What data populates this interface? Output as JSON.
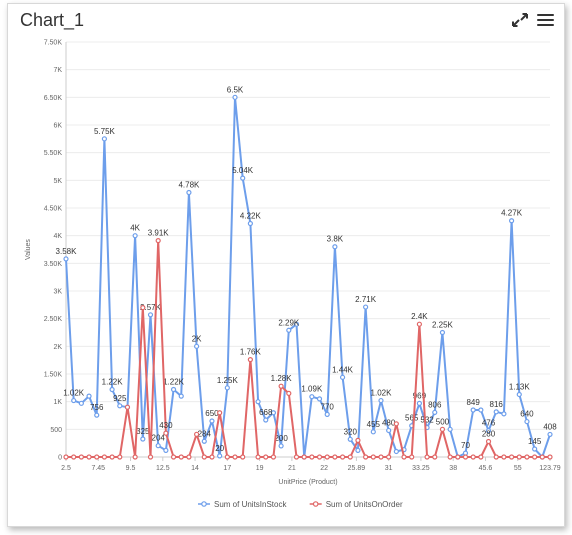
{
  "title": "Chart_1",
  "toolbar": {
    "expand_icon": "expand-icon",
    "menu_icon": "hamburger-menu-icon"
  },
  "colors": {
    "stock": "#6d9eeb",
    "order": "#e06666",
    "grid": "#ececec",
    "axis": "#cccccc"
  },
  "chart_data": {
    "type": "line",
    "xlabel": "UnitPrice (Product)",
    "ylabel": "Values",
    "ylim": [
      0,
      7500
    ],
    "y_ticks": [
      0,
      500,
      1000,
      1500,
      2000,
      2500,
      3000,
      3500,
      4000,
      4500,
      5000,
      5500,
      6000,
      6500,
      7000,
      7500
    ],
    "y_tick_labels": [
      "0",
      "500",
      "1K",
      "1.50K",
      "2K",
      "2.50K",
      "3K",
      "3.50K",
      "4K",
      "4.50K",
      "5K",
      "5.50K",
      "6K",
      "6.50K",
      "7K",
      "7.50K"
    ],
    "x_tick_labels": [
      "2.5",
      "7.45",
      "9.5",
      "12.5",
      "14",
      "17",
      "19",
      "21",
      "22",
      "25.89",
      "31",
      "33.25",
      "38",
      "45.6",
      "55",
      "123.79"
    ],
    "legend": [
      "Sum of UnitsInStock",
      "Sum of UnitsOnOrder"
    ],
    "legend_position": "bottom",
    "grid": true,
    "series": [
      {
        "name": "Sum of UnitsInStock",
        "values": [
          3580,
          1020,
          970,
          1100,
          756,
          5750,
          1220,
          925,
          900,
          4000,
          325,
          2570,
          204,
          120,
          1220,
          1100,
          4780,
          2000,
          284,
          650,
          20,
          1250,
          6500,
          5040,
          4220,
          1000,
          668,
          800,
          200,
          2290,
          2400,
          0,
          1090,
          1050,
          770,
          3800,
          1440,
          320,
          120,
          2710,
          455,
          1020,
          480,
          100,
          133,
          565,
          969,
          532,
          806,
          2250,
          500,
          0,
          70,
          849,
          850,
          476,
          816,
          780,
          4270,
          1130,
          640,
          145,
          0,
          408
        ],
        "labels": {
          "0": "3.58K",
          "1": "1.02K",
          "4": "756",
          "5": "5.75K",
          "6": "1.22K",
          "7": "925",
          "9": "4K",
          "10": "325",
          "11": "2.57K",
          "12": "204",
          "14": "1.22K",
          "16": "4.78K",
          "17": "2K",
          "18": "284",
          "19": "650",
          "20": "20",
          "21": "1.25K",
          "22": "6.5K",
          "23": "5.04K",
          "24": "4.22K",
          "26": "668",
          "28": "200",
          "29": "2.29K",
          "32": "1.09K",
          "34": "770",
          "35": "3.8K",
          "36": "1.44K",
          "37": "320",
          "39": "2.71K",
          "40": "455",
          "41": "1.02K",
          "42": "480",
          "45": "565",
          "46": "969",
          "47": "532",
          "48": "806",
          "49": "2.25K",
          "52": "70",
          "53": "849",
          "55": "476",
          "56": "816",
          "58": "4.27K",
          "59": "1.13K",
          "60": "640",
          "61": "145",
          "63": "408"
        }
      },
      {
        "name": "Sum of UnitsOnOrder",
        "values": [
          0,
          0,
          0,
          0,
          0,
          0,
          0,
          0,
          900,
          0,
          2700,
          0,
          3910,
          430,
          0,
          0,
          0,
          410,
          0,
          0,
          800,
          0,
          0,
          0,
          1760,
          0,
          0,
          0,
          1280,
          1150,
          0,
          0,
          0,
          0,
          0,
          0,
          0,
          0,
          300,
          0,
          0,
          0,
          0,
          600,
          0,
          0,
          2400,
          0,
          0,
          500,
          0,
          0,
          0,
          0,
          0,
          280,
          0,
          0,
          0,
          0,
          0,
          0,
          0,
          0
        ],
        "labels": {
          "12": "3.91K",
          "13": "430",
          "24": "1.76K",
          "28": "1.28K",
          "46": "2.4K",
          "49": "500",
          "55": "280"
        }
      }
    ]
  }
}
